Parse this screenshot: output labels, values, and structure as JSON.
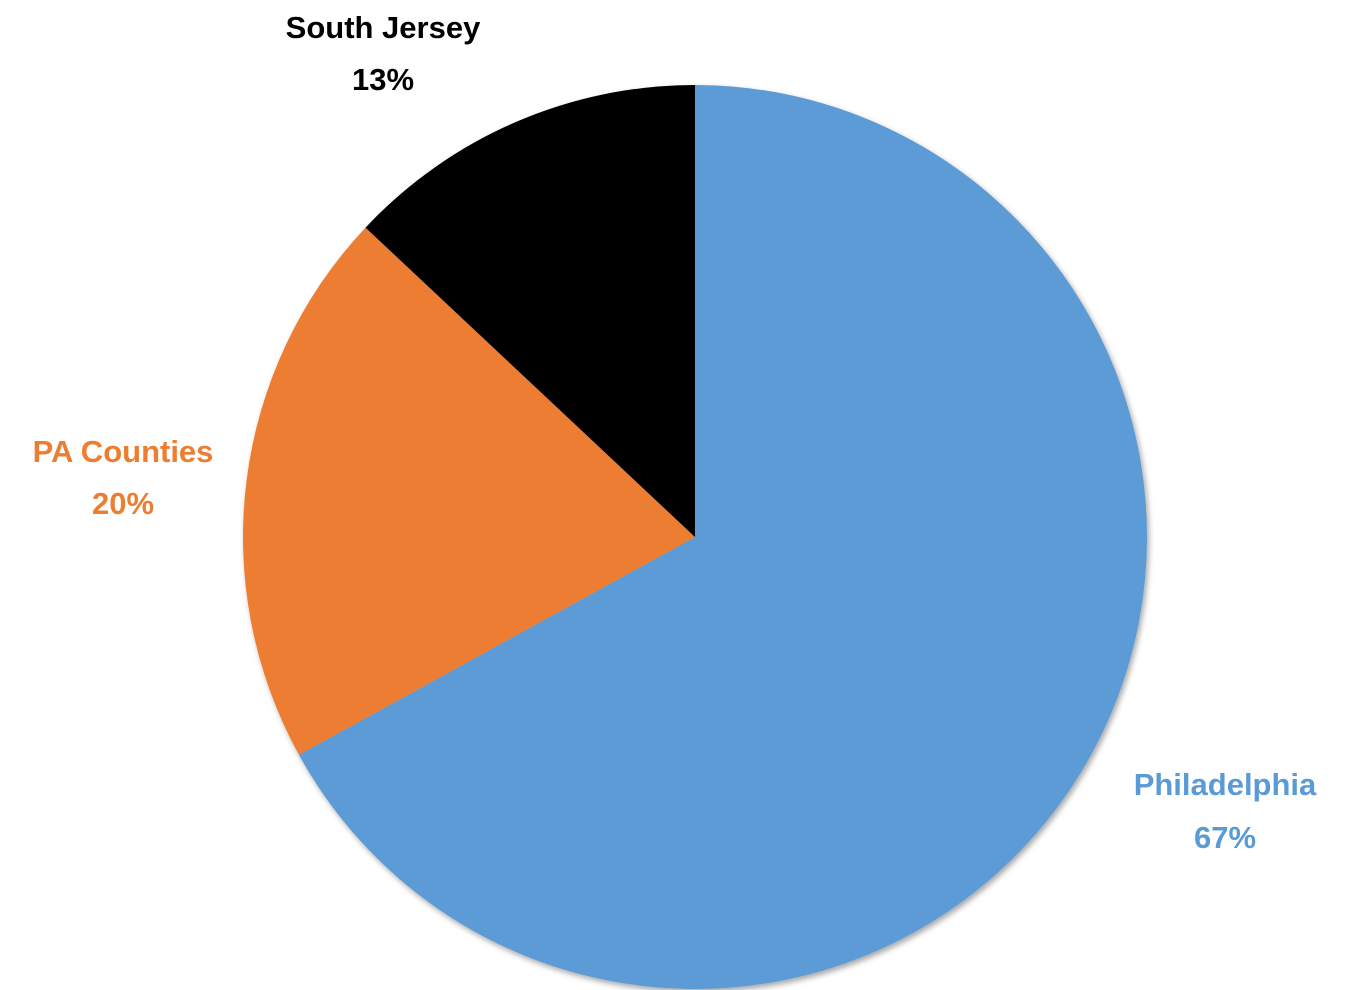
{
  "chart_data": {
    "type": "pie",
    "start_angle_deg": 0,
    "direction": "clockwise",
    "slices": [
      {
        "label": "Philadelphia",
        "percent_label": "67%",
        "value": 67,
        "color": "#5b9bd5"
      },
      {
        "label": "PA Counties",
        "percent_label": "20%",
        "value": 20,
        "color": "#ed7d31"
      },
      {
        "label": "South Jersey",
        "percent_label": "13%",
        "value": 13,
        "color": "#000000"
      }
    ]
  }
}
